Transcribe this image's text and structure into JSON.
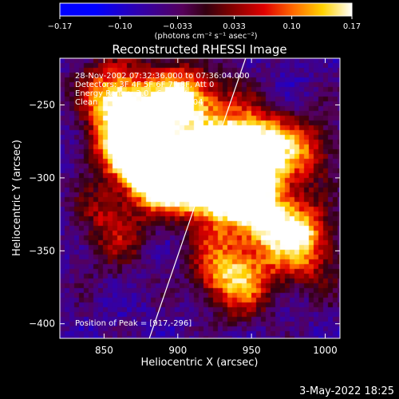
{
  "chart_data": {
    "type": "heatmap",
    "title": "Reconstructed RHESSI Image",
    "xlabel": "Heliocentric X (arcsec)",
    "ylabel": "Heliocentric Y (arcsec)",
    "xlim": [
      820,
      1010
    ],
    "ylim": [
      -410,
      -218
    ],
    "x_ticks": [
      850,
      900,
      950,
      1000
    ],
    "x_tick_labels": [
      "850",
      "900",
      "950",
      "1000"
    ],
    "y_ticks": [
      -250,
      -300,
      -350,
      -400
    ],
    "y_tick_labels": [
      "−250",
      "−300",
      "−350",
      "−400"
    ],
    "colorbar": {
      "range": [
        -0.17,
        0.17
      ],
      "ticks": [
        -0.17,
        -0.1,
        -0.033,
        0.033,
        0.1,
        0.17
      ],
      "tick_labels": [
        "−0.17",
        "−0.10",
        "−0.033",
        "0.033",
        "0.10",
        "0.17"
      ],
      "units_label": "(photons cm⁻² s⁻¹ asec⁻²)"
    },
    "annotations": [
      "28-Nov-2002 07:32:36.000 to 07:36:04.000",
      "Detectors: 3F 4F 5F 6F 7F 8F, Att 0",
      "Energy Range: 3.0 - 6.0 keV",
      "Clean     Total counts: 2.54E+04"
    ],
    "peak_label": "Position of Peak = [917,-296]",
    "peak_position": [
      917,
      -296
    ],
    "limb_line": [
      [
        878,
        -418
      ],
      [
        946,
        -218
      ]
    ],
    "sources": [
      {
        "x": 893,
        "y": -302,
        "value": 0.17
      },
      {
        "x": 916,
        "y": -296,
        "value": 0.17
      },
      {
        "x": 942,
        "y": -283,
        "value": 0.14
      },
      {
        "x": 870,
        "y": -270,
        "value": 0.1
      },
      {
        "x": 860,
        "y": -240,
        "value": 0.08
      },
      {
        "x": 905,
        "y": -250,
        "value": 0.09
      },
      {
        "x": 960,
        "y": -325,
        "value": 0.1
      },
      {
        "x": 938,
        "y": -362,
        "value": 0.1
      },
      {
        "x": 975,
        "y": -290,
        "value": 0.08
      },
      {
        "x": 855,
        "y": -335,
        "value": 0.05
      },
      {
        "x": 985,
        "y": -350,
        "value": 0.06
      }
    ],
    "colors": {
      "low": "#0000ff",
      "mid_low": "#4b0060",
      "mid_high": "#ff0000",
      "high": "#ffffff",
      "plot_background": "#000000"
    },
    "grid": false
  },
  "timestamp": "3-May-2022 18:25"
}
